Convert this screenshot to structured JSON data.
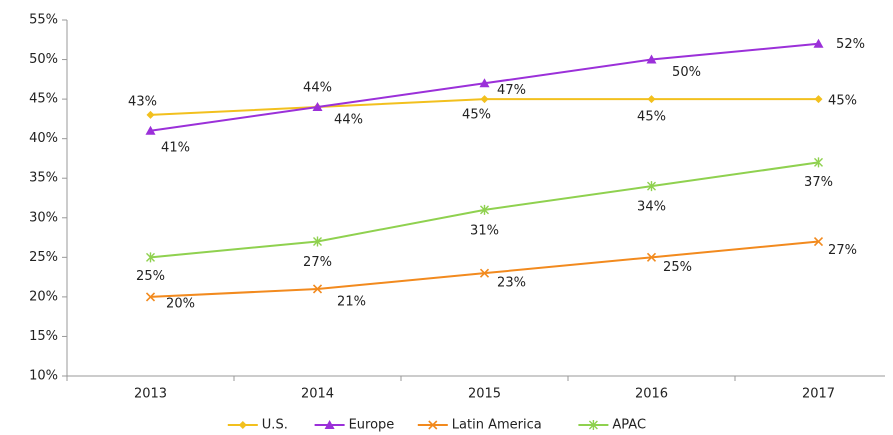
{
  "chart_data": {
    "type": "line",
    "categories": [
      "2013",
      "2014",
      "2015",
      "2016",
      "2017"
    ],
    "series": [
      {
        "name": "U.S.",
        "color": "#f2c01e",
        "marker": "diamond",
        "values": [
          43,
          44,
          45,
          45,
          45
        ],
        "value_labels": [
          "43%",
          "44%",
          "45%",
          "45%",
          "45%"
        ]
      },
      {
        "name": "Europe",
        "color": "#9b30d9",
        "marker": "triangle",
        "values": [
          41,
          44,
          47,
          50,
          52
        ],
        "value_labels": [
          "41%",
          "44%",
          "47%",
          "50%",
          "52%"
        ]
      },
      {
        "name": "Latin America",
        "color": "#f28a1e",
        "marker": "x",
        "values": [
          20,
          21,
          23,
          25,
          27
        ],
        "value_labels": [
          "20%",
          "21%",
          "23%",
          "25%",
          "27%"
        ]
      },
      {
        "name": "APAC",
        "color": "#8fd14f",
        "marker": "star",
        "values": [
          25,
          27,
          31,
          34,
          37
        ],
        "value_labels": [
          "25%",
          "27%",
          "31%",
          "34%",
          "37%"
        ]
      }
    ],
    "ylim": [
      10,
      55
    ],
    "yticks": [
      {
        "value": 10,
        "label": "10%"
      },
      {
        "value": 15,
        "label": "15%"
      },
      {
        "value": 20,
        "label": "20%"
      },
      {
        "value": 25,
        "label": "25%"
      },
      {
        "value": 30,
        "label": "30%"
      },
      {
        "value": 35,
        "label": "35%"
      },
      {
        "value": 40,
        "label": "40%"
      },
      {
        "value": 45,
        "label": "45%"
      },
      {
        "value": 50,
        "label": "50%"
      },
      {
        "value": 55,
        "label": "55%"
      }
    ],
    "grid": false,
    "legend": "bottom"
  }
}
